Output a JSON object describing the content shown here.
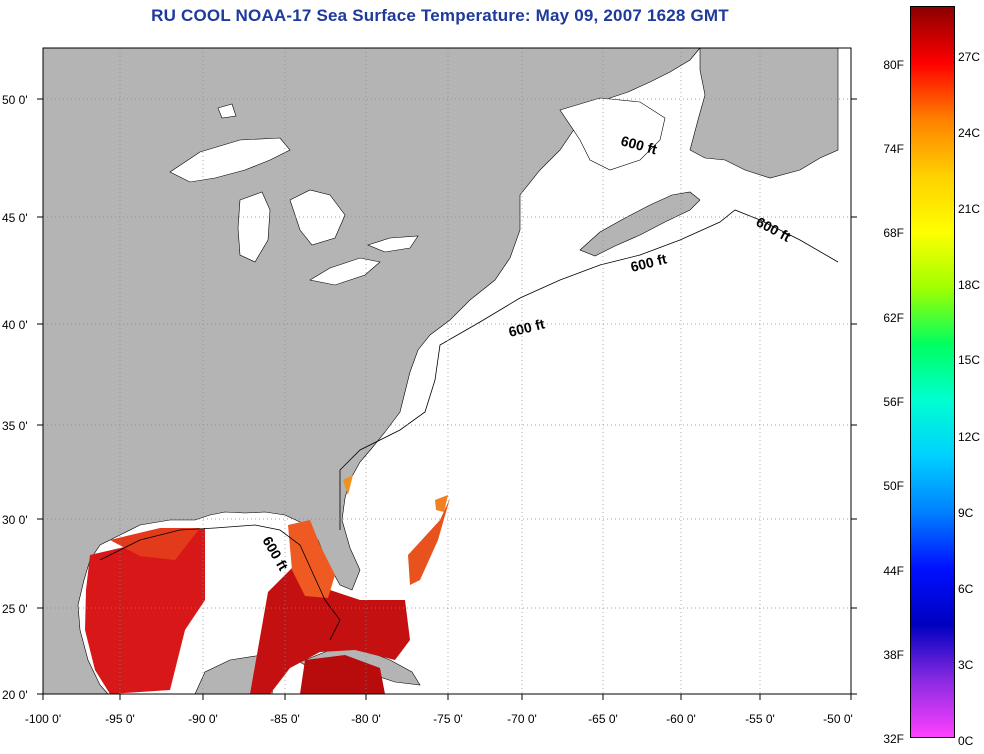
{
  "title": "RU COOL  NOAA-17  Sea Surface Temperature:  May 09, 2007 1628 GMT",
  "lat_labels": [
    "50 0'",
    "45 0'",
    "40 0'",
    "35 0'",
    "30 0'",
    "25 0'",
    "20 0'"
  ],
  "lon_labels": [
    "-100 0'",
    "-95 0'",
    "-90 0'",
    "-85 0'",
    "-80 0'",
    "-75 0'",
    "-70 0'",
    "-65 0'",
    "-60 0'",
    "-55 0'",
    "-50 0'"
  ],
  "contour_label": "600 ft",
  "colorbar": {
    "fahrenheit": [
      "80F",
      "74F",
      "68F",
      "62F",
      "56F",
      "50F",
      "44F",
      "38F",
      "32F"
    ],
    "celsius": [
      "27C",
      "24C",
      "21C",
      "18C",
      "15C",
      "12C",
      "9C",
      "6C",
      "3C",
      "0C"
    ],
    "colors": [
      "#8b0000",
      "#ff0000",
      "#ff8000",
      "#ffd000",
      "#ffff00",
      "#a0ff00",
      "#00ff60",
      "#00ffd0",
      "#00d0ff",
      "#0080ff",
      "#0010ff",
      "#0000c0",
      "#8a2be2",
      "#ff40ff"
    ]
  },
  "colors": {
    "land": "#b4b4b4",
    "ocean": "#ffffff",
    "title": "#1e3a9a"
  }
}
